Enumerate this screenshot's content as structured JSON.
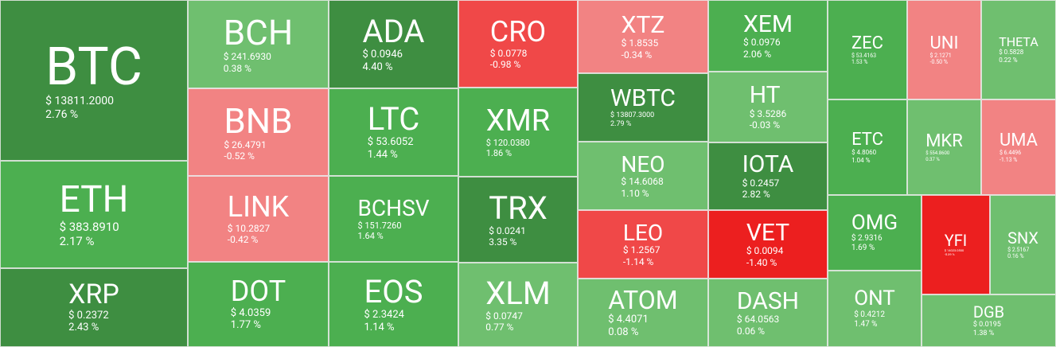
{
  "tiles": [
    {
      "symbol": "BTC",
      "price": "$ 13811.2000",
      "change": "2.76 %",
      "color": "#3e8e41"
    },
    {
      "symbol": "ETH",
      "price": "$ 383.8910",
      "change": "2.17 %",
      "color": "#4caf50"
    },
    {
      "symbol": "XRP",
      "price": "$ 0.2372",
      "change": "2.43 %",
      "color": "#3e8e41"
    },
    {
      "symbol": "BCH",
      "price": "$ 241.6930",
      "change": "0.38 %",
      "color": "#6fbf6f"
    },
    {
      "symbol": "BNB",
      "price": "$ 26.4791",
      "change": "-0.52 %",
      "color": "#f28383"
    },
    {
      "symbol": "LINK",
      "price": "$ 10.2827",
      "change": "-0.42 %",
      "color": "#f28383"
    },
    {
      "symbol": "DOT",
      "price": "$ 4.0359",
      "change": "1.77 %",
      "color": "#4caf50"
    },
    {
      "symbol": "ADA",
      "price": "$ 0.0946",
      "change": "4.40 %",
      "color": "#3e8e41"
    },
    {
      "symbol": "LTC",
      "price": "$ 53.6052",
      "change": "1.44 %",
      "color": "#4caf50"
    },
    {
      "symbol": "BCHSV",
      "price": "$ 151.7260",
      "change": "1.64 %",
      "color": "#4caf50"
    },
    {
      "symbol": "EOS",
      "price": "$ 2.3424",
      "change": "1.14 %",
      "color": "#4caf50"
    },
    {
      "symbol": "CRO",
      "price": "$ 0.0778",
      "change": "-0.98 %",
      "color": "#f04848"
    },
    {
      "symbol": "XMR",
      "price": "$ 120.0380",
      "change": "1.86 %",
      "color": "#4caf50"
    },
    {
      "symbol": "TRX",
      "price": "$ 0.0241",
      "change": "3.35 %",
      "color": "#3e8e41"
    },
    {
      "symbol": "XLM",
      "price": "$ 0.0747",
      "change": "0.77 %",
      "color": "#6fbf6f"
    },
    {
      "symbol": "XTZ",
      "price": "$ 1.8535",
      "change": "-0.34 %",
      "color": "#f28383"
    },
    {
      "symbol": "WBTC",
      "price": "$ 13807.3000",
      "change": "2.79 %",
      "color": "#3e8e41"
    },
    {
      "symbol": "NEO",
      "price": "$ 14.6068",
      "change": "1.10 %",
      "color": "#6fbf6f"
    },
    {
      "symbol": "LEO",
      "price": "$ 1.2567",
      "change": "-1.14 %",
      "color": "#f04848"
    },
    {
      "symbol": "ATOM",
      "price": "$ 4.4071",
      "change": "0.08 %",
      "color": "#6fbf6f"
    },
    {
      "symbol": "XEM",
      "price": "$ 0.0976",
      "change": "2.06 %",
      "color": "#4caf50"
    },
    {
      "symbol": "HT",
      "price": "$ 3.5286",
      "change": "-0.03 %",
      "color": "#6fbf6f"
    },
    {
      "symbol": "IOTA",
      "price": "$ 0.2457",
      "change": "2.82 %",
      "color": "#3e8e41"
    },
    {
      "symbol": "VET",
      "price": "$ 0.0094",
      "change": "-1.40 %",
      "color": "#ec1f1f"
    },
    {
      "symbol": "DASH",
      "price": "$ 64.0563",
      "change": "0.06 %",
      "color": "#6fbf6f"
    },
    {
      "symbol": "ZEC",
      "price": "$ 53.4163",
      "change": "1.53 %",
      "color": "#4caf50"
    },
    {
      "symbol": "UNI",
      "price": "$ 2.1271",
      "change": "-0.50 %",
      "color": "#f28383"
    },
    {
      "symbol": "THETA",
      "price": "$ 0.5828",
      "change": "0.22 %",
      "color": "#6fbf6f"
    },
    {
      "symbol": "ETC",
      "price": "$ 4.8060",
      "change": "1.04 %",
      "color": "#4caf50"
    },
    {
      "symbol": "MKR",
      "price": "$ 554.8600",
      "change": "0.37 %",
      "color": "#6fbf6f"
    },
    {
      "symbol": "UMA",
      "price": "$ 6.4496",
      "change": "-1.13 %",
      "color": "#f28383"
    },
    {
      "symbol": "OMG",
      "price": "$ 2.9316",
      "change": "1.69 %",
      "color": "#4caf50"
    },
    {
      "symbol": "ONT",
      "price": "$ 0.4212",
      "change": "1.47 %",
      "color": "#6fbf6f"
    },
    {
      "symbol": "YFI",
      "price": "$ 14023.0500",
      "change": "-5.39 %",
      "color": "#ec1f1f"
    },
    {
      "symbol": "SNX",
      "price": "$ 2.5167",
      "change": "0.16 %",
      "color": "#6fbf6f"
    },
    {
      "symbol": "DGB",
      "price": "$ 0.0195",
      "change": "1.38 %",
      "color": "#6fbf6f"
    }
  ]
}
